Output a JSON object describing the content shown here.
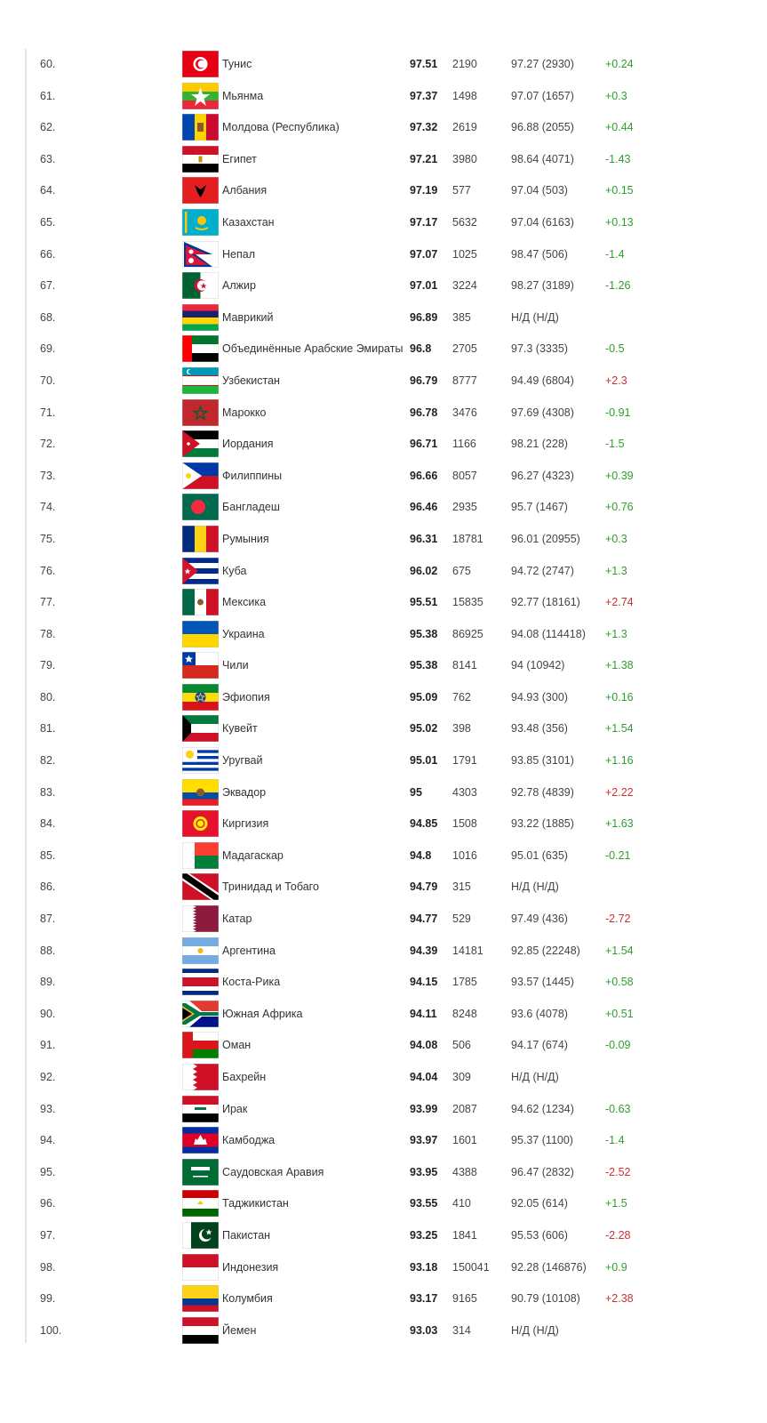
{
  "colors": {
    "positive": "#2e9d2e",
    "negative": "#c83232"
  },
  "rows": [
    {
      "rank": "60.",
      "flag": "tunisia-flag",
      "country": "Тунис",
      "score": "97.51",
      "tests": "2190",
      "previous": "97.27 (2930)",
      "change": "+0.24"
    },
    {
      "rank": "61.",
      "flag": "myanmar-flag",
      "country": "Мьянма",
      "score": "97.37",
      "tests": "1498",
      "previous": "97.07 (1657)",
      "change": "+0.3"
    },
    {
      "rank": "62.",
      "flag": "moldova-flag",
      "country": "Молдова (Республика)",
      "score": "97.32",
      "tests": "2619",
      "previous": "96.88 (2055)",
      "change": "+0.44"
    },
    {
      "rank": "63.",
      "flag": "egypt-flag",
      "country": "Египет",
      "score": "97.21",
      "tests": "3980",
      "previous": "98.64 (4071)",
      "change": "-1.43"
    },
    {
      "rank": "64.",
      "flag": "albania-flag",
      "country": "Албания",
      "score": "97.19",
      "tests": "577",
      "previous": "97.04 (503)",
      "change": "+0.15"
    },
    {
      "rank": "65.",
      "flag": "kazakhstan-flag",
      "country": "Казахстан",
      "score": "97.17",
      "tests": "5632",
      "previous": "97.04 (6163)",
      "change": "+0.13"
    },
    {
      "rank": "66.",
      "flag": "nepal-flag",
      "country": "Непал",
      "score": "97.07",
      "tests": "1025",
      "previous": "98.47 (506)",
      "change": "-1.4"
    },
    {
      "rank": "67.",
      "flag": "algeria-flag",
      "country": "Алжир",
      "score": "97.01",
      "tests": "3224",
      "previous": "98.27 (3189)",
      "change": "-1.26"
    },
    {
      "rank": "68.",
      "flag": "mauritius-flag",
      "country": "Маврикий",
      "score": "96.89",
      "tests": "385",
      "previous": "Н/Д (Н/Д)",
      "change": ""
    },
    {
      "rank": "69.",
      "flag": "uae-flag",
      "country": "Объединённые Арабские Эмираты",
      "score": "96.8",
      "tests": "2705",
      "previous": "97.3 (3335)",
      "change": "-0.5"
    },
    {
      "rank": "70.",
      "flag": "uzbekistan-flag",
      "country": "Узбекистан",
      "score": "96.79",
      "tests": "8777",
      "previous": "94.49 (6804)",
      "change": "+2.3"
    },
    {
      "rank": "71.",
      "flag": "morocco-flag",
      "country": "Марокко",
      "score": "96.78",
      "tests": "3476",
      "previous": "97.69 (4308)",
      "change": "-0.91"
    },
    {
      "rank": "72.",
      "flag": "jordan-flag",
      "country": "Иордания",
      "score": "96.71",
      "tests": "1166",
      "previous": "98.21 (228)",
      "change": "-1.5"
    },
    {
      "rank": "73.",
      "flag": "philippines-flag",
      "country": "Филиппины",
      "score": "96.66",
      "tests": "8057",
      "previous": "96.27 (4323)",
      "change": "+0.39"
    },
    {
      "rank": "74.",
      "flag": "bangladesh-flag",
      "country": "Бангладеш",
      "score": "96.46",
      "tests": "2935",
      "previous": "95.7 (1467)",
      "change": "+0.76"
    },
    {
      "rank": "75.",
      "flag": "romania-flag",
      "country": "Румыния",
      "score": "96.31",
      "tests": "18781",
      "previous": "96.01 (20955)",
      "change": "+0.3"
    },
    {
      "rank": "76.",
      "flag": "cuba-flag",
      "country": "Куба",
      "score": "96.02",
      "tests": "675",
      "previous": "94.72 (2747)",
      "change": "+1.3"
    },
    {
      "rank": "77.",
      "flag": "mexico-flag",
      "country": "Мексика",
      "score": "95.51",
      "tests": "15835",
      "previous": "92.77 (18161)",
      "change": "+2.74"
    },
    {
      "rank": "78.",
      "flag": "ukraine-flag",
      "country": "Украина",
      "score": "95.38",
      "tests": "86925",
      "previous": "94.08 (114418)",
      "change": "+1.3"
    },
    {
      "rank": "79.",
      "flag": "chile-flag",
      "country": "Чили",
      "score": "95.38",
      "tests": "8141",
      "previous": "94 (10942)",
      "change": "+1.38"
    },
    {
      "rank": "80.",
      "flag": "ethiopia-flag",
      "country": "Эфиопия",
      "score": "95.09",
      "tests": "762",
      "previous": "94.93 (300)",
      "change": "+0.16"
    },
    {
      "rank": "81.",
      "flag": "kuwait-flag",
      "country": "Кувейт",
      "score": "95.02",
      "tests": "398",
      "previous": "93.48 (356)",
      "change": "+1.54"
    },
    {
      "rank": "82.",
      "flag": "uruguay-flag",
      "country": "Уругвай",
      "score": "95.01",
      "tests": "1791",
      "previous": "93.85 (3101)",
      "change": "+1.16"
    },
    {
      "rank": "83.",
      "flag": "ecuador-flag",
      "country": "Эквадор",
      "score": "95",
      "tests": "4303",
      "previous": "92.78 (4839)",
      "change": "+2.22"
    },
    {
      "rank": "84.",
      "flag": "kyrgyzstan-flag",
      "country": "Киргизия",
      "score": "94.85",
      "tests": "1508",
      "previous": "93.22 (1885)",
      "change": "+1.63"
    },
    {
      "rank": "85.",
      "flag": "madagascar-flag",
      "country": "Мадагаскар",
      "score": "94.8",
      "tests": "1016",
      "previous": "95.01 (635)",
      "change": "-0.21"
    },
    {
      "rank": "86.",
      "flag": "trinidad-flag",
      "country": "Тринидад и Тобаго",
      "score": "94.79",
      "tests": "315",
      "previous": "Н/Д (Н/Д)",
      "change": ""
    },
    {
      "rank": "87.",
      "flag": "qatar-flag",
      "country": "Катар",
      "score": "94.77",
      "tests": "529",
      "previous": "97.49 (436)",
      "change": "-2.72"
    },
    {
      "rank": "88.",
      "flag": "argentina-flag",
      "country": "Аргентина",
      "score": "94.39",
      "tests": "14181",
      "previous": "92.85 (22248)",
      "change": "+1.54"
    },
    {
      "rank": "89.",
      "flag": "costa-rica-flag",
      "country": "Коста-Рика",
      "score": "94.15",
      "tests": "1785",
      "previous": "93.57 (1445)",
      "change": "+0.58"
    },
    {
      "rank": "90.",
      "flag": "south-africa-flag",
      "country": "Южная Африка",
      "score": "94.11",
      "tests": "8248",
      "previous": "93.6 (4078)",
      "change": "+0.51"
    },
    {
      "rank": "91.",
      "flag": "oman-flag",
      "country": "Оман",
      "score": "94.08",
      "tests": "506",
      "previous": "94.17 (674)",
      "change": "-0.09"
    },
    {
      "rank": "92.",
      "flag": "bahrain-flag",
      "country": "Бахрейн",
      "score": "94.04",
      "tests": "309",
      "previous": "Н/Д (Н/Д)",
      "change": ""
    },
    {
      "rank": "93.",
      "flag": "iraq-flag",
      "country": "Ирак",
      "score": "93.99",
      "tests": "2087",
      "previous": "94.62 (1234)",
      "change": "-0.63"
    },
    {
      "rank": "94.",
      "flag": "cambodia-flag",
      "country": "Камбоджа",
      "score": "93.97",
      "tests": "1601",
      "previous": "95.37 (1100)",
      "change": "-1.4"
    },
    {
      "rank": "95.",
      "flag": "saudi-arabia-flag",
      "country": "Саудовская Аравия",
      "score": "93.95",
      "tests": "4388",
      "previous": "96.47 (2832)",
      "change": "-2.52"
    },
    {
      "rank": "96.",
      "flag": "tajikistan-flag",
      "country": "Таджикистан",
      "score": "93.55",
      "tests": "410",
      "previous": "92.05 (614)",
      "change": "+1.5"
    },
    {
      "rank": "97.",
      "flag": "pakistan-flag",
      "country": "Пакистан",
      "score": "93.25",
      "tests": "1841",
      "previous": "95.53 (606)",
      "change": "-2.28"
    },
    {
      "rank": "98.",
      "flag": "indonesia-flag",
      "country": "Индонезия",
      "score": "93.18",
      "tests": "150041",
      "previous": "92.28 (146876)",
      "change": "+0.9"
    },
    {
      "rank": "99.",
      "flag": "colombia-flag",
      "country": "Колумбия",
      "score": "93.17",
      "tests": "9165",
      "previous": "90.79 (10108)",
      "change": "+2.38"
    },
    {
      "rank": "100.",
      "flag": "yemen-flag",
      "country": "Йемен",
      "score": "93.03",
      "tests": "314",
      "previous": "Н/Д (Н/Д)",
      "change": ""
    }
  ]
}
